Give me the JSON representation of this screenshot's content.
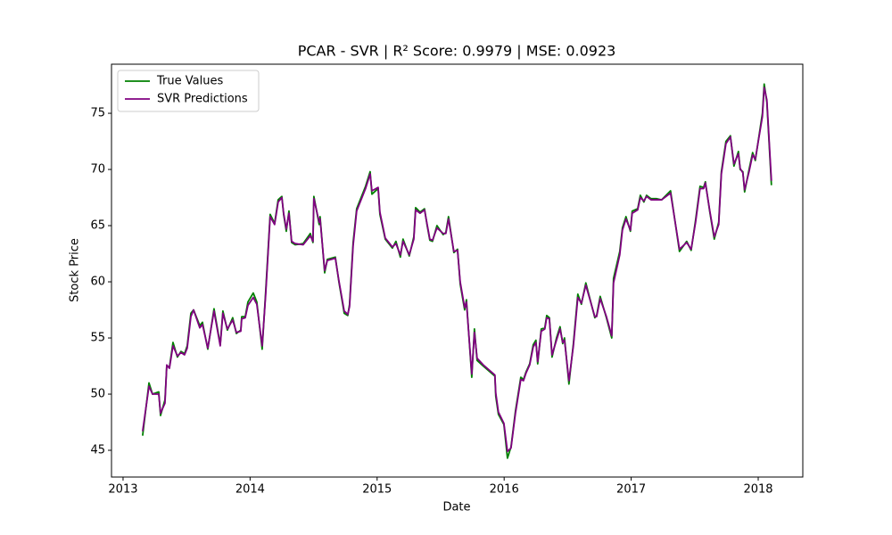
{
  "chart_data": {
    "type": "line",
    "title": "PCAR - SVR | R² Score: 0.9979 | MSE: 0.0923",
    "x_label": "Date",
    "y_label": "Stock Price",
    "xlim": [
      2012.909,
      2018.351
    ],
    "ylim": [
      42.62,
      79.37
    ],
    "xticks": [
      2013,
      2014,
      2015,
      2016,
      2017,
      2018
    ],
    "yticks": [
      45,
      50,
      55,
      60,
      65,
      70,
      75
    ],
    "legend": "upper left",
    "x": [
      2013.154,
      2013.204,
      2013.232,
      2013.281,
      2013.295,
      2013.33,
      2013.344,
      2013.365,
      2013.393,
      2013.428,
      2013.456,
      2013.484,
      2013.505,
      2013.534,
      2013.555,
      2013.604,
      2013.625,
      2013.667,
      2013.716,
      2013.765,
      2013.786,
      2013.821,
      2013.863,
      2013.892,
      2013.927,
      2013.934,
      2013.962,
      2013.983,
      2014.025,
      2014.053,
      2014.095,
      2014.123,
      2014.158,
      2014.193,
      2014.221,
      2014.25,
      2014.264,
      2014.285,
      2014.306,
      2014.327,
      2014.355,
      2014.418,
      2014.474,
      2014.495,
      2014.502,
      2014.544,
      2014.551,
      2014.587,
      2014.608,
      2014.671,
      2014.699,
      2014.741,
      2014.769,
      2014.783,
      2014.811,
      2014.839,
      2014.909,
      2014.945,
      2014.959,
      2015.008,
      2015.022,
      2015.064,
      2015.12,
      2015.148,
      2015.183,
      2015.204,
      2015.253,
      2015.289,
      2015.303,
      2015.338,
      2015.373,
      2015.394,
      2015.415,
      2015.436,
      2015.471,
      2015.52,
      2015.541,
      2015.562,
      2015.604,
      2015.633,
      2015.654,
      2015.689,
      2015.703,
      2015.745,
      2015.766,
      2015.787,
      2015.836,
      2015.927,
      2015.934,
      2015.955,
      2015.998,
      2016.026,
      2016.054,
      2016.089,
      2016.131,
      2016.152,
      2016.173,
      2016.201,
      2016.229,
      2016.25,
      2016.264,
      2016.292,
      2016.32,
      2016.335,
      2016.356,
      2016.377,
      2016.412,
      2016.44,
      2016.461,
      2016.475,
      2016.51,
      2016.545,
      2016.58,
      2016.608,
      2016.643,
      2016.714,
      2016.728,
      2016.756,
      2016.805,
      2016.847,
      2016.861,
      2016.91,
      2016.931,
      2016.959,
      2016.994,
      2017.008,
      2017.051,
      2017.072,
      2017.1,
      2017.121,
      2017.156,
      2017.198,
      2017.24,
      2017.31,
      2017.38,
      2017.437,
      2017.472,
      2017.507,
      2017.542,
      2017.57,
      2017.584,
      2017.619,
      2017.654,
      2017.689,
      2017.71,
      2017.746,
      2017.781,
      2017.809,
      2017.844,
      2017.858,
      2017.879,
      2017.893,
      2017.928,
      2017.956,
      2017.977,
      2018.033,
      2018.047,
      2018.068,
      2018.104
    ],
    "series": [
      {
        "name": "True Values",
        "color": "#008000",
        "values": [
          46.3,
          51.0,
          50.0,
          50.2,
          48.1,
          49.5,
          52.5,
          52.4,
          54.6,
          53.3,
          53.8,
          53.6,
          54.3,
          57.2,
          57.5,
          56.1,
          56.4,
          54.0,
          57.6,
          54.4,
          57.4,
          55.7,
          56.8,
          55.4,
          55.7,
          56.9,
          56.9,
          58.2,
          59.0,
          58.2,
          54.0,
          59.2,
          66.0,
          65.2,
          67.3,
          67.6,
          66.0,
          64.5,
          66.3,
          63.5,
          63.3,
          63.4,
          64.3,
          63.5,
          67.6,
          65.1,
          65.8,
          60.8,
          62.0,
          62.2,
          60.0,
          57.2,
          57.0,
          58.0,
          63.5,
          66.5,
          68.5,
          69.8,
          67.8,
          68.3,
          66.0,
          63.8,
          63.0,
          63.6,
          62.2,
          63.8,
          62.3,
          64.0,
          66.6,
          66.2,
          66.5,
          65.0,
          63.7,
          63.6,
          65.0,
          64.2,
          64.4,
          65.8,
          62.6,
          62.9,
          59.8,
          57.5,
          58.4,
          51.5,
          55.8,
          53.0,
          52.5,
          51.6,
          49.8,
          48.2,
          47.3,
          44.3,
          45.3,
          48.5,
          51.5,
          51.3,
          52.0,
          52.7,
          54.4,
          54.8,
          52.7,
          55.8,
          55.9,
          57.0,
          56.8,
          53.3,
          55.0,
          56.0,
          54.5,
          55.0,
          50.9,
          54.5,
          58.9,
          58.0,
          59.9,
          56.8,
          57.0,
          58.7,
          56.8,
          55.0,
          60.3,
          62.7,
          64.8,
          65.8,
          64.5,
          66.3,
          66.5,
          67.7,
          67.1,
          67.7,
          67.4,
          67.4,
          67.3,
          68.1,
          62.7,
          63.6,
          62.8,
          65.5,
          68.5,
          68.4,
          68.9,
          66.2,
          63.8,
          65.3,
          69.8,
          72.5,
          73.0,
          70.3,
          71.6,
          70.0,
          69.8,
          68.0,
          70.0,
          71.5,
          70.8,
          75.0,
          77.6,
          76.0,
          68.6
        ]
      },
      {
        "name": "SVR Predictions",
        "color": "#800080",
        "values": [
          46.7,
          50.7,
          50.0,
          50.0,
          48.3,
          49.2,
          52.6,
          52.3,
          54.3,
          53.4,
          53.7,
          53.5,
          54.1,
          56.9,
          57.5,
          55.9,
          56.2,
          54.1,
          57.4,
          54.3,
          57.2,
          55.8,
          56.6,
          55.5,
          55.6,
          56.7,
          56.8,
          57.9,
          58.6,
          58.0,
          54.3,
          58.9,
          65.8,
          65.1,
          67.1,
          67.5,
          66.1,
          64.7,
          66.1,
          63.6,
          63.4,
          63.3,
          64.1,
          63.6,
          67.4,
          65.3,
          65.6,
          61.0,
          61.9,
          62.1,
          60.1,
          57.4,
          57.1,
          57.8,
          63.2,
          66.3,
          68.3,
          69.6,
          68.1,
          68.4,
          66.2,
          63.9,
          63.1,
          63.4,
          62.4,
          63.6,
          62.4,
          63.8,
          66.4,
          66.1,
          66.4,
          65.1,
          63.8,
          63.7,
          64.8,
          64.3,
          64.3,
          65.6,
          62.7,
          62.8,
          60.0,
          57.7,
          58.2,
          51.8,
          55.5,
          53.2,
          52.6,
          51.7,
          50.1,
          48.4,
          47.4,
          44.9,
          45.2,
          48.3,
          51.3,
          51.2,
          51.9,
          52.6,
          54.2,
          54.6,
          52.9,
          55.6,
          55.8,
          56.8,
          56.7,
          53.5,
          54.8,
          55.8,
          54.6,
          54.8,
          51.2,
          54.3,
          58.6,
          58.1,
          59.7,
          56.9,
          56.9,
          58.5,
          56.9,
          55.2,
          59.9,
          62.4,
          64.6,
          65.6,
          64.6,
          66.1,
          66.4,
          67.5,
          67.2,
          67.6,
          67.3,
          67.3,
          67.3,
          67.9,
          62.9,
          63.5,
          62.9,
          65.3,
          68.3,
          68.3,
          68.8,
          66.3,
          64.0,
          65.1,
          69.6,
          72.3,
          72.9,
          70.5,
          71.4,
          70.1,
          69.7,
          68.2,
          69.8,
          71.3,
          70.9,
          74.7,
          77.3,
          76.2,
          69.0
        ]
      }
    ]
  }
}
